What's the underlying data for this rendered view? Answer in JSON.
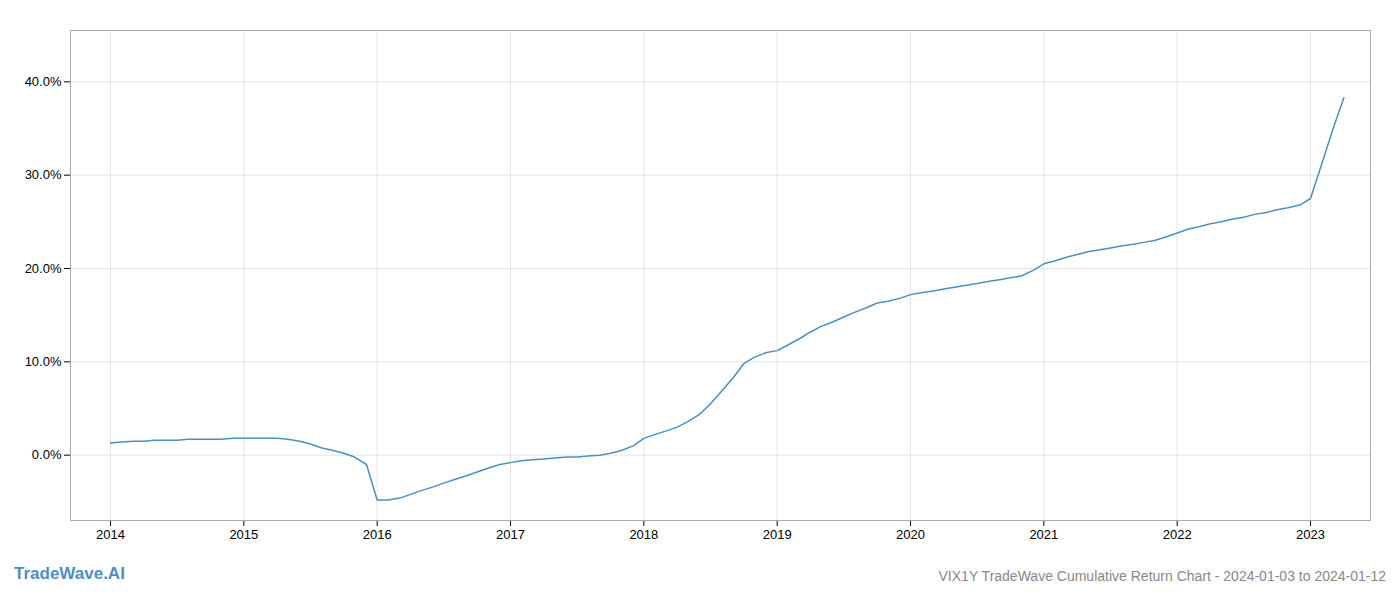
{
  "chart_data": {
    "type": "line",
    "title": "VIX1Y TradeWave Cumulative Return Chart - 2024-01-03 to 2024-01-12",
    "annotations": [
      "TradeWave.AI"
    ],
    "color": "#4a90c4",
    "grid": true,
    "x": [
      2014.0,
      2014.08,
      2014.17,
      2014.25,
      2014.33,
      2014.42,
      2014.5,
      2014.58,
      2014.67,
      2014.75,
      2014.83,
      2014.92,
      2015.0,
      2015.08,
      2015.17,
      2015.25,
      2015.33,
      2015.42,
      2015.5,
      2015.58,
      2015.67,
      2015.75,
      2015.83,
      2015.92,
      2016.0,
      2016.08,
      2016.17,
      2016.25,
      2016.33,
      2016.42,
      2016.5,
      2016.58,
      2016.67,
      2016.75,
      2016.83,
      2016.92,
      2017.0,
      2017.08,
      2017.17,
      2017.25,
      2017.33,
      2017.42,
      2017.5,
      2017.58,
      2017.67,
      2017.75,
      2017.83,
      2017.92,
      2018.0,
      2018.08,
      2018.17,
      2018.25,
      2018.33,
      2018.42,
      2018.5,
      2018.58,
      2018.67,
      2018.75,
      2018.83,
      2018.92,
      2019.0,
      2019.08,
      2019.17,
      2019.25,
      2019.33,
      2019.42,
      2019.5,
      2019.58,
      2019.67,
      2019.75,
      2019.83,
      2019.92,
      2020.0,
      2020.08,
      2020.17,
      2020.25,
      2020.33,
      2020.42,
      2020.5,
      2020.58,
      2020.67,
      2020.75,
      2020.83,
      2020.92,
      2021.0,
      2021.08,
      2021.17,
      2021.25,
      2021.33,
      2021.42,
      2021.5,
      2021.58,
      2021.67,
      2021.75,
      2021.83,
      2021.92,
      2022.0,
      2022.08,
      2022.17,
      2022.25,
      2022.33,
      2022.42,
      2022.5,
      2022.58,
      2022.67,
      2022.75,
      2022.83,
      2022.92,
      2023.0,
      2023.08,
      2023.17,
      2023.25
    ],
    "values": [
      0.013,
      0.014,
      0.015,
      0.015,
      0.016,
      0.016,
      0.016,
      0.017,
      0.017,
      0.017,
      0.017,
      0.018,
      0.018,
      0.018,
      0.018,
      0.018,
      0.017,
      0.015,
      0.012,
      0.008,
      0.005,
      0.002,
      -0.002,
      -0.01,
      -0.048,
      -0.048,
      -0.046,
      -0.042,
      -0.038,
      -0.034,
      -0.03,
      -0.026,
      -0.022,
      -0.018,
      -0.014,
      -0.01,
      -0.008,
      -0.006,
      -0.005,
      -0.004,
      -0.003,
      -0.002,
      -0.002,
      -0.001,
      0.0,
      0.002,
      0.005,
      0.01,
      0.018,
      0.022,
      0.026,
      0.03,
      0.036,
      0.044,
      0.055,
      0.068,
      0.083,
      0.098,
      0.105,
      0.11,
      0.112,
      0.118,
      0.125,
      0.132,
      0.138,
      0.143,
      0.148,
      0.153,
      0.158,
      0.163,
      0.165,
      0.168,
      0.172,
      0.174,
      0.176,
      0.178,
      0.18,
      0.182,
      0.184,
      0.186,
      0.188,
      0.19,
      0.192,
      0.198,
      0.205,
      0.208,
      0.212,
      0.215,
      0.218,
      0.22,
      0.222,
      0.224,
      0.226,
      0.228,
      0.23,
      0.234,
      0.238,
      0.242,
      0.245,
      0.248,
      0.25,
      0.253,
      0.255,
      0.258,
      0.26,
      0.263,
      0.265,
      0.268,
      0.275,
      0.31,
      0.35,
      0.383
    ],
    "xlim": [
      2013.7,
      2023.45
    ],
    "ylim": [
      -0.07,
      0.455
    ],
    "xticks": [
      2014,
      2015,
      2016,
      2017,
      2018,
      2019,
      2020,
      2021,
      2022,
      2023
    ],
    "yticks": [
      {
        "value": 0.0,
        "label": "0.0%"
      },
      {
        "value": 0.1,
        "label": "10.0%"
      },
      {
        "value": 0.2,
        "label": "20.0%"
      },
      {
        "value": 0.3,
        "label": "30.0%"
      },
      {
        "value": 0.4,
        "label": "40.0%"
      }
    ]
  }
}
